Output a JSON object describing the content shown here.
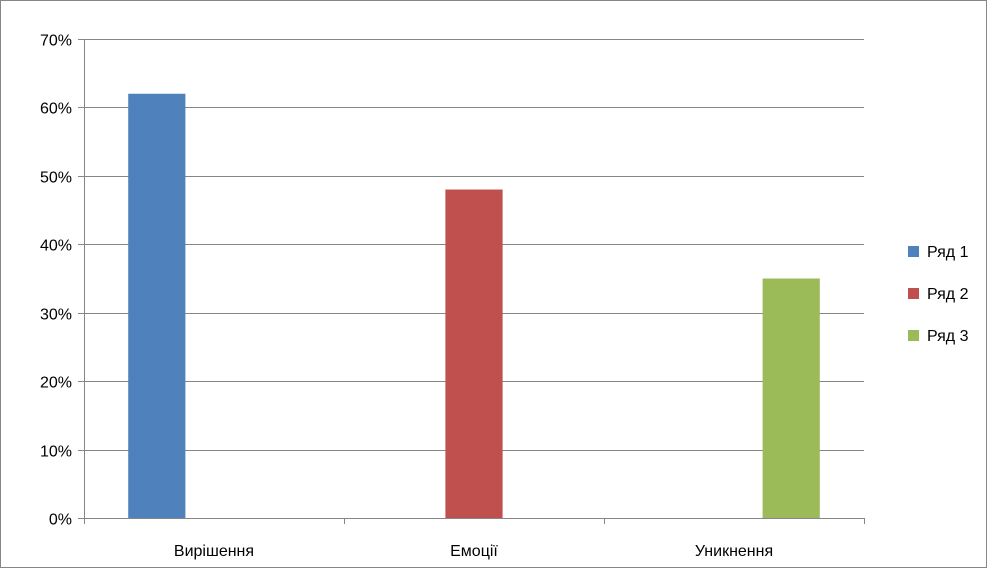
{
  "chart_data": {
    "type": "bar",
    "categories": [
      "Вирішення",
      "Емоції",
      "Уникнення"
    ],
    "series": [
      {
        "name": "Ряд 1",
        "color": "#4F81BD",
        "values": [
          0.62,
          null,
          null
        ]
      },
      {
        "name": "Ряд 2",
        "color": "#C0504D",
        "values": [
          null,
          0.48,
          null
        ]
      },
      {
        "name": "Ряд 3",
        "color": "#9BBB59",
        "values": [
          null,
          null,
          0.35
        ]
      }
    ],
    "ylim": [
      0,
      0.7
    ],
    "yticks": [
      0,
      0.1,
      0.2,
      0.3,
      0.4,
      0.5,
      0.6,
      0.7
    ],
    "ytick_labels": [
      "0%",
      "10%",
      "20%",
      "30%",
      "40%",
      "50%",
      "60%",
      "70%"
    ],
    "y_format": "percent",
    "grid": true,
    "legend_position": "right",
    "title": "",
    "xlabel": "",
    "ylabel": ""
  },
  "colors": {
    "gridline": "#868686",
    "axis": "#868686",
    "frame": "#868686",
    "text": "#000000"
  }
}
